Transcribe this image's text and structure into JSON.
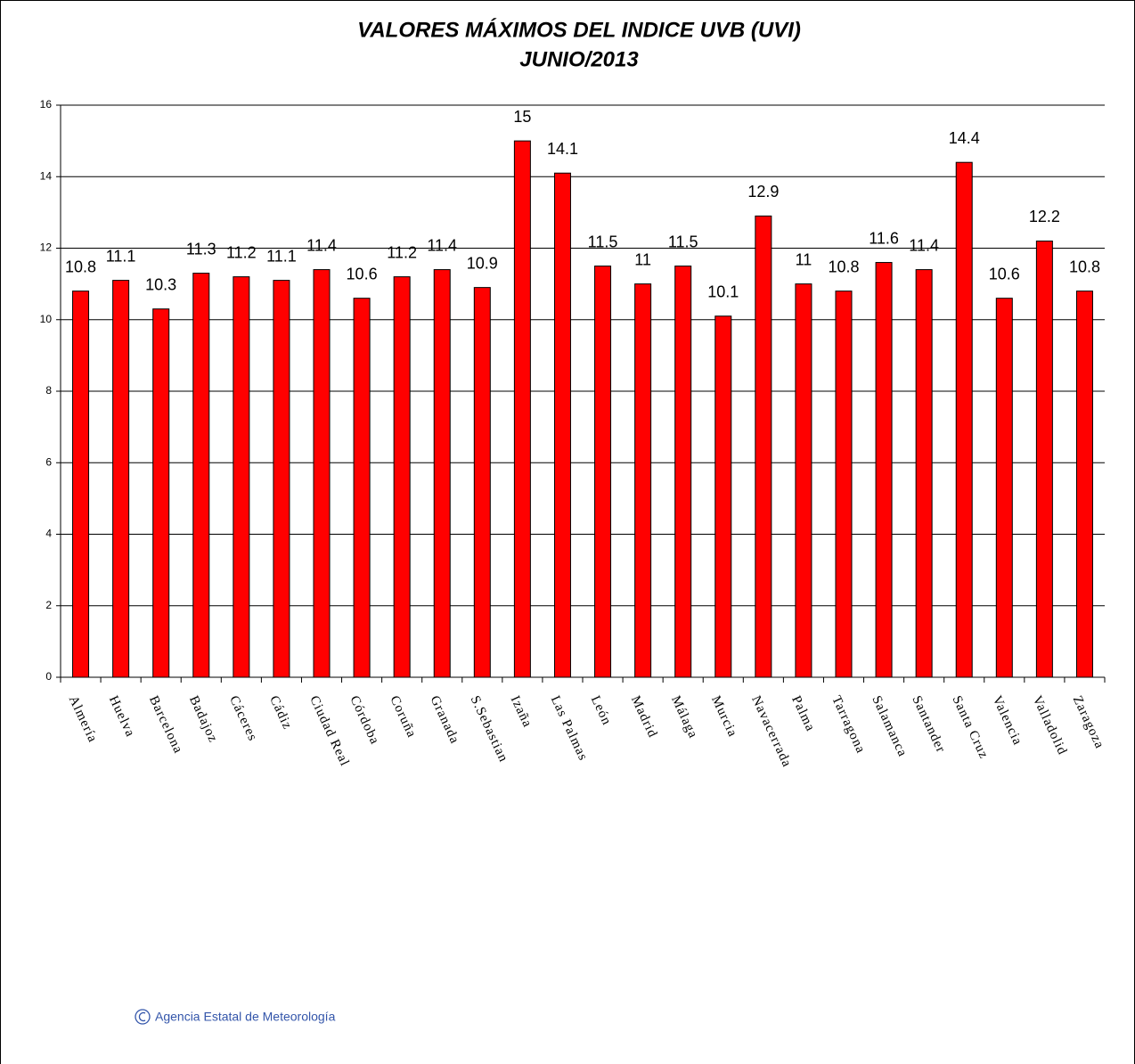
{
  "chart_data": {
    "type": "bar",
    "title": [
      "VALORES MÁXIMOS DEL INDICE UVB (UVI)",
      "JUNIO/2013"
    ],
    "categories": [
      "Almería",
      "Huelva",
      "Barcelona",
      "Badajoz",
      "Cáceres",
      "Cádiz",
      "Ciudad Real",
      "Córdoba",
      "Coruña",
      "Granada",
      "S.Sebastian",
      "Izaña",
      "Las Palmas",
      "León",
      "Madrid",
      "Málaga",
      "Murcia",
      "Navacerrada",
      "Palma",
      "Tarragona",
      "Salamanca",
      "Santander",
      "Santa Cruz",
      "Valencia",
      "Valladolid",
      "Zaragoza"
    ],
    "values": [
      10.8,
      11.1,
      10.3,
      11.3,
      11.2,
      11.1,
      11.4,
      10.6,
      11.2,
      11.4,
      10.9,
      15,
      14.1,
      11.5,
      11,
      11.5,
      10.1,
      12.9,
      11,
      10.8,
      11.6,
      11.4,
      14.4,
      10.6,
      12.2,
      10.8
    ],
    "color": "#ff0000",
    "ylim": [
      0,
      16
    ],
    "yticks": [
      0,
      2,
      4,
      6,
      8,
      10,
      12,
      14,
      16
    ],
    "grid": true,
    "source": "Agencia Estatal de Meteorología"
  }
}
